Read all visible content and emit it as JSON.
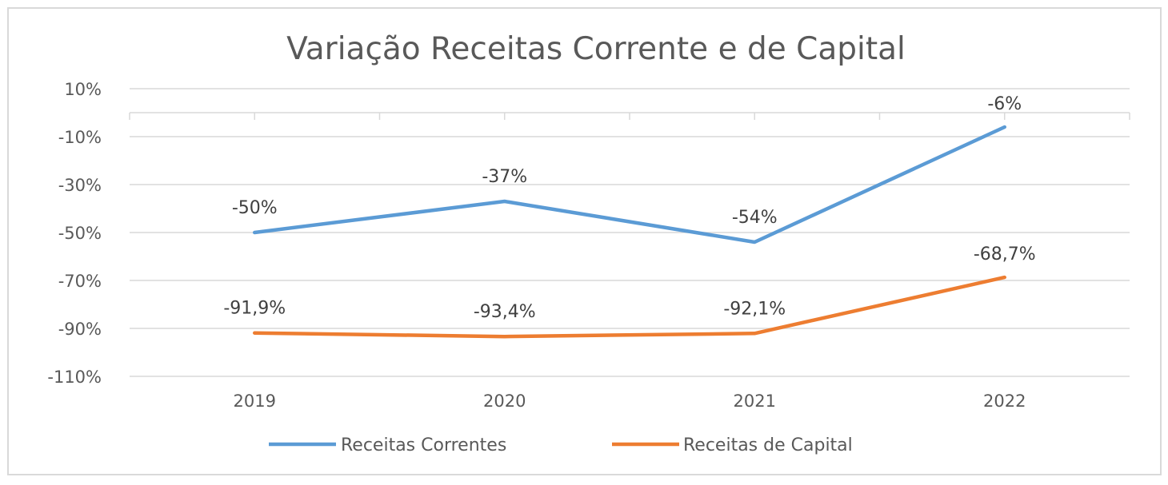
{
  "chart_data": {
    "type": "line",
    "title": "Variação Receitas Corrente e de Capital",
    "categories": [
      "2019",
      "2020",
      "2021",
      "2022"
    ],
    "y_ticks": [
      "10%",
      "-10%",
      "-30%",
      "-50%",
      "-70%",
      "-90%",
      "-110%"
    ],
    "ylim": [
      -110,
      10
    ],
    "grid": true,
    "legend_position": "bottom",
    "series": [
      {
        "name": "Receitas Correntes",
        "color": "#5b9bd5",
        "values": [
          -50,
          -37,
          -54,
          -6
        ],
        "labels": [
          "-50%",
          "-37%",
          "-54%",
          "-6%"
        ]
      },
      {
        "name": "Receitas de Capital",
        "color": "#ed7d31",
        "values": [
          -91.9,
          -93.4,
          -92.1,
          -68.7
        ],
        "labels": [
          "-91,9%",
          "-93,4%",
          "-92,1%",
          "-68,7%"
        ]
      }
    ]
  }
}
